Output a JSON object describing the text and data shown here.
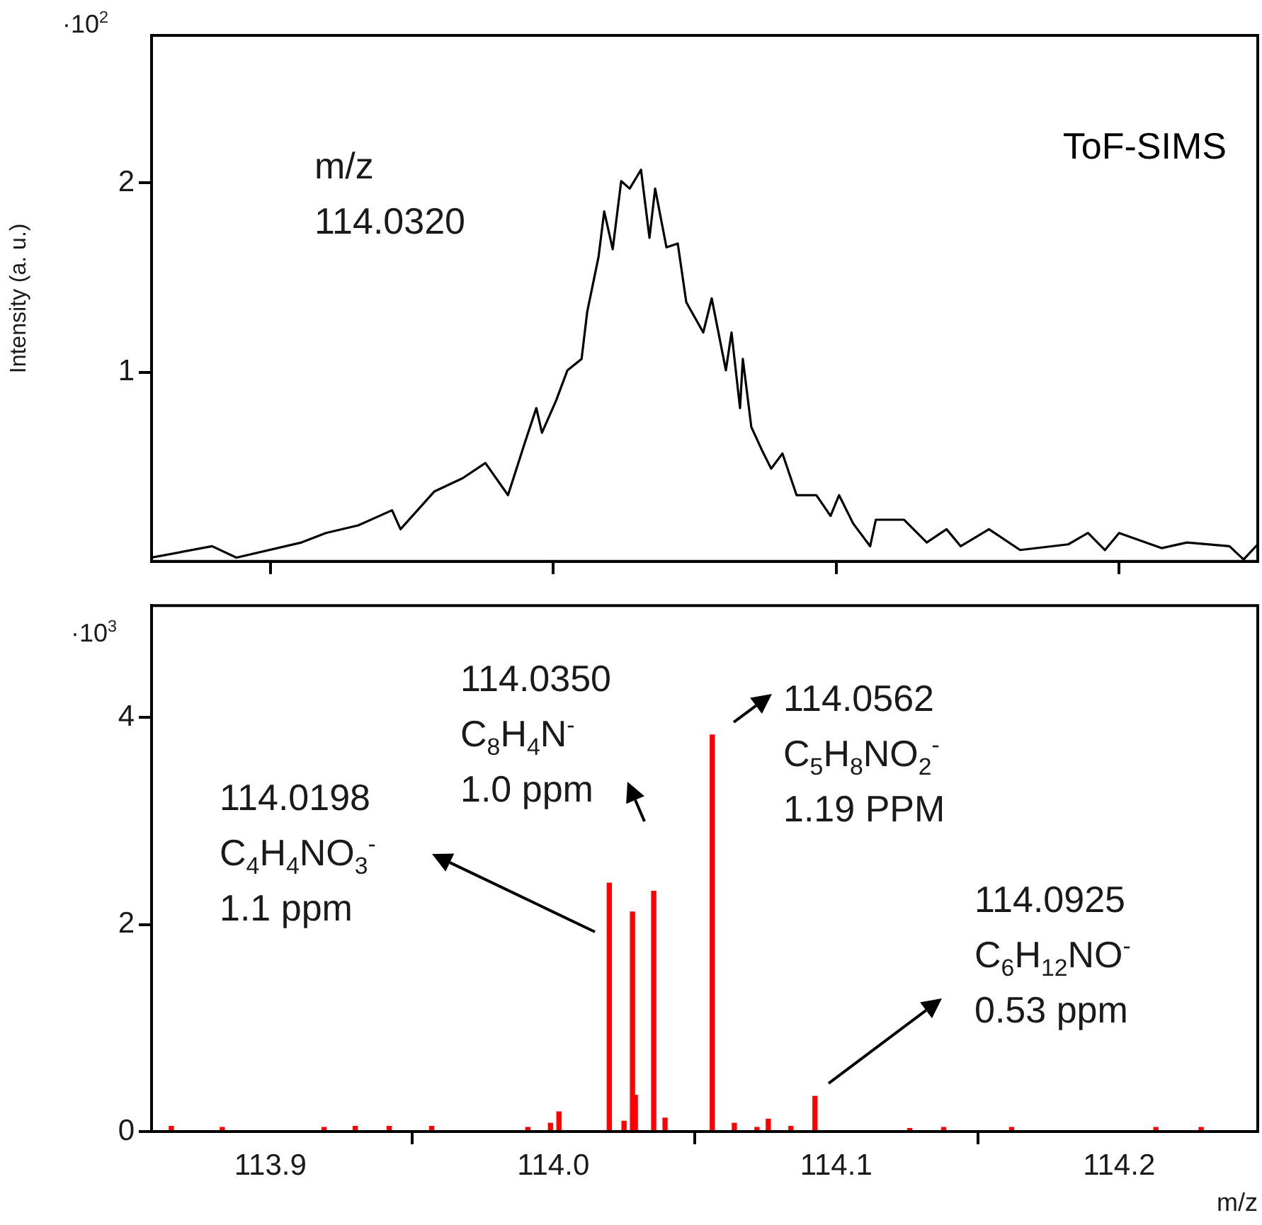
{
  "chart_data": [
    {
      "type": "line",
      "ylabel": "Intensity (a. u.)",
      "annotations": [
        "·10$^{2}$",
        "m/z\n114.0320"
      ],
      "xlim": [
        113.858,
        114.249
      ],
      "xticks": [
        113.9,
        114,
        114.1,
        114.2
      ],
      "ylim": [
        0,
        2.78
      ],
      "yticks": [
        1,
        2
      ],
      "tick_labels": "y",
      "grid": false,
      "legend": false,
      "marker": "none",
      "line_style": "solid",
      "series": [
        {
          "name": "ToF-SIMS",
          "color": "#000000",
          "x": [
            113.858,
            113.8794,
            113.888,
            113.911,
            113.9196,
            113.931,
            113.943,
            113.946,
            113.958,
            113.968,
            113.976,
            113.984,
            113.99,
            113.994,
            113.996,
            114.001,
            114.005,
            114.01,
            114.012,
            114.016,
            114.018,
            114.021,
            114.024,
            114.027,
            114.031,
            114.034,
            114.036,
            114.04,
            114.044,
            114.047,
            114.053,
            114.056,
            114.061,
            114.063,
            114.066,
            114.067,
            114.07,
            114.074,
            114.077,
            114.081,
            114.086,
            114.093,
            114.098,
            114.101,
            114.106,
            114.112,
            114.114,
            114.124,
            114.132,
            114.139,
            114.144,
            114.154,
            114.165,
            114.182,
            114.189,
            114.195,
            114.2,
            114.215,
            114.224,
            114.239,
            114.244,
            114.249
          ],
          "values": [
            0.02,
            0.08,
            0.02,
            0.1,
            0.15,
            0.19,
            0.27,
            0.17,
            0.37,
            0.44,
            0.52,
            0.35,
            0.63,
            0.81,
            0.68,
            0.85,
            1.01,
            1.07,
            1.32,
            1.61,
            1.85,
            1.65,
            2.01,
            1.97,
            2.07,
            1.71,
            1.97,
            1.66,
            1.68,
            1.37,
            1.21,
            1.39,
            1.01,
            1.21,
            0.81,
            1.07,
            0.71,
            0.58,
            0.49,
            0.57,
            0.35,
            0.35,
            0.24,
            0.35,
            0.2,
            0.08,
            0.22,
            0.22,
            0.1,
            0.17,
            0.08,
            0.17,
            0.06,
            0.09,
            0.15,
            0.06,
            0.15,
            0.07,
            0.1,
            0.08,
            0.01,
            0.09
          ]
        }
      ]
    },
    {
      "type": "bar",
      "xlabel": "m/z",
      "annotations": [
        "·10$^{3}$",
        "114.0198\nC$_{4}$H$_{4}$NO$_{3}$$^{-}$\n1.1 ppm",
        "114.0350\nC$_{8}$H$_{4}$N$^{-}$\n1.0 ppm",
        "114.0562\nC$_{5}$H$_{8}$NO$_{2}$$^{-}$\n1.19 PPM",
        "114.0925\nC$_{6}$H$_{12}$NO$^{-}$\n0.53 ppm"
      ],
      "xlim": [
        113.858,
        114.249
      ],
      "xticks": [
        113.9,
        {
          "value": 114,
          "label": "114.0"
        },
        114.1,
        114.2
      ],
      "ylim": [
        0,
        5.08
      ],
      "yticks": [
        0,
        2,
        4
      ],
      "grid": false,
      "legend": false,
      "series": [
        {
          "color": "#ff0000",
          "x": [
            113.865,
            113.883,
            113.919,
            113.93,
            113.942,
            113.957,
            113.991,
            113.999,
            114.002,
            114.0198,
            114.025,
            114.028,
            114.029,
            114.0355,
            114.0395,
            114.0562,
            114.064,
            114.072,
            114.076,
            114.084,
            114.0925,
            114.126,
            114.138,
            114.162,
            114.213,
            114.229
          ],
          "values": [
            0.05,
            0.04,
            0.04,
            0.05,
            0.05,
            0.05,
            0.04,
            0.08,
            0.19,
            2.4,
            0.1,
            2.12,
            0.35,
            2.32,
            0.13,
            3.83,
            0.08,
            0.04,
            0.12,
            0.05,
            0.34,
            0.03,
            0.04,
            0.04,
            0.04,
            0.04
          ]
        }
      ]
    }
  ]
}
